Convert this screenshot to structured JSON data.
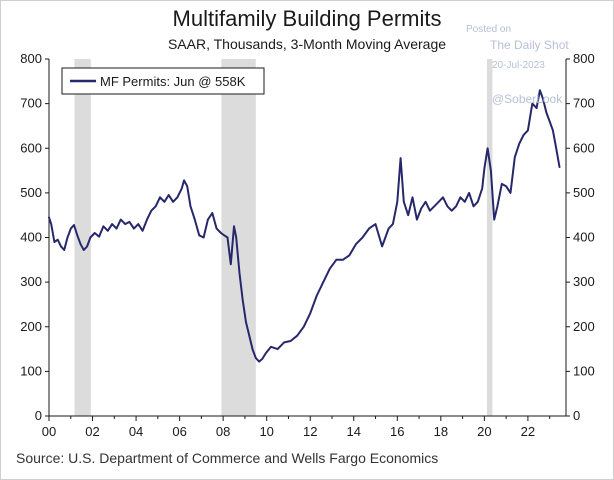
{
  "title": "Multifamily Building Permits",
  "subtitle": "SAAR, Thousands, 3-Month Moving Average",
  "watermark": {
    "posted": "Posted on",
    "site": "The Daily Shot",
    "date": "20-Jul-2023",
    "handle": "@SoberLook"
  },
  "source": "Source: U.S. Department of Commerce and Wells Fargo Economics",
  "colors": {
    "line": "#27276b",
    "recession": "#dcdcdc",
    "axis": "#1a1a1a"
  },
  "chart_data": {
    "type": "line",
    "title": "Multifamily Building Permits",
    "subtitle": "SAAR, Thousands, 3-Month Moving Average",
    "x_tick_labels": [
      "00",
      "02",
      "04",
      "06",
      "08",
      "10",
      "12",
      "14",
      "16",
      "18",
      "20",
      "22"
    ],
    "x_tick_years": [
      2000,
      2002,
      2004,
      2006,
      2008,
      2010,
      2012,
      2014,
      2016,
      2018,
      2020,
      2022
    ],
    "xlim": [
      2000,
      2023.75
    ],
    "ylim": [
      0,
      800
    ],
    "y_ticks": [
      0,
      100,
      200,
      300,
      400,
      500,
      600,
      700,
      800
    ],
    "y_tick_labels": [
      "0",
      "100",
      "200",
      "300",
      "400",
      "500",
      "600",
      "700",
      "800"
    ],
    "right_axis": true,
    "grid": false,
    "legend_position": "top-left",
    "recessions": [
      [
        2001.17,
        2001.92
      ],
      [
        2007.92,
        2009.5
      ],
      [
        2020.12,
        2020.37
      ]
    ],
    "series": [
      {
        "name": "MF Permits: Jun @ 558K",
        "x": [
          2000.0,
          2000.1,
          2000.25,
          2000.4,
          2000.55,
          2000.7,
          2000.85,
          2001.0,
          2001.15,
          2001.3,
          2001.45,
          2001.6,
          2001.75,
          2001.9,
          2002.1,
          2002.3,
          2002.5,
          2002.7,
          2002.9,
          2003.1,
          2003.3,
          2003.5,
          2003.7,
          2003.9,
          2004.1,
          2004.3,
          2004.5,
          2004.7,
          2004.9,
          2005.1,
          2005.3,
          2005.5,
          2005.7,
          2005.9,
          2006.1,
          2006.2,
          2006.35,
          2006.5,
          2006.7,
          2006.9,
          2007.1,
          2007.3,
          2007.5,
          2007.7,
          2007.9,
          2008.05,
          2008.2,
          2008.35,
          2008.5,
          2008.6,
          2008.75,
          2008.9,
          2009.05,
          2009.2,
          2009.35,
          2009.5,
          2009.65,
          2009.8,
          2009.95,
          2010.2,
          2010.5,
          2010.8,
          2011.1,
          2011.4,
          2011.7,
          2012.0,
          2012.3,
          2012.6,
          2012.9,
          2013.2,
          2013.5,
          2013.8,
          2014.1,
          2014.4,
          2014.7,
          2015.0,
          2015.3,
          2015.6,
          2015.8,
          2016.0,
          2016.15,
          2016.3,
          2016.5,
          2016.7,
          2016.9,
          2017.1,
          2017.3,
          2017.5,
          2017.7,
          2017.9,
          2018.1,
          2018.3,
          2018.5,
          2018.7,
          2018.9,
          2019.1,
          2019.3,
          2019.5,
          2019.7,
          2019.9,
          2020.0,
          2020.15,
          2020.3,
          2020.45,
          2020.6,
          2020.8,
          2021.0,
          2021.2,
          2021.4,
          2021.6,
          2021.8,
          2022.0,
          2022.2,
          2022.4,
          2022.55,
          2022.7,
          2022.85,
          2023.0,
          2023.15,
          2023.3,
          2023.45
        ],
        "y": [
          445,
          430,
          390,
          395,
          380,
          372,
          400,
          420,
          428,
          405,
          385,
          372,
          380,
          400,
          410,
          402,
          425,
          415,
          430,
          420,
          440,
          430,
          435,
          420,
          430,
          415,
          440,
          460,
          470,
          490,
          480,
          495,
          480,
          490,
          510,
          528,
          515,
          470,
          440,
          405,
          400,
          440,
          455,
          420,
          410,
          405,
          400,
          340,
          425,
          400,
          320,
          260,
          210,
          180,
          150,
          130,
          122,
          128,
          140,
          155,
          150,
          165,
          168,
          180,
          200,
          230,
          270,
          300,
          330,
          350,
          350,
          360,
          385,
          400,
          420,
          430,
          380,
          420,
          430,
          480,
          578,
          480,
          450,
          490,
          440,
          465,
          480,
          460,
          470,
          480,
          490,
          470,
          460,
          470,
          490,
          480,
          500,
          470,
          480,
          510,
          555,
          600,
          550,
          440,
          470,
          520,
          515,
          500,
          580,
          610,
          630,
          640,
          700,
          690,
          730,
          710,
          680,
          660,
          640,
          600,
          558
        ]
      }
    ]
  }
}
